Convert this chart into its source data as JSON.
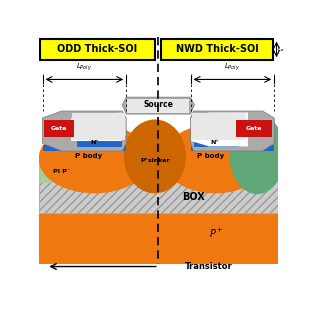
{
  "fig_w": 3.09,
  "fig_h": 3.09,
  "dpi": 100,
  "white": "#ffffff",
  "yellow": "#ffff00",
  "black": "#000000",
  "orange": "#f07810",
  "dark_orange": "#cc6600",
  "light_green": "#a8cca0",
  "teal": "#60a878",
  "blue": "#2266cc",
  "gray": "#aaaaaa",
  "dark_gray": "#777777",
  "red": "#cc1111",
  "box_gray": "#cccccc",
  "title_left": "ODD Thick-SOI",
  "title_right": "NWD Thick-SOI",
  "label_gate": "Gate",
  "label_source": "Source",
  "label_pbody": "P body",
  "label_psinker": "P⁺sinker",
  "label_nplus": "N⁺",
  "label_pip": "PI P⁻",
  "label_box": "BOX",
  "label_psub": "P⁺",
  "label_transistor": "Transistor"
}
